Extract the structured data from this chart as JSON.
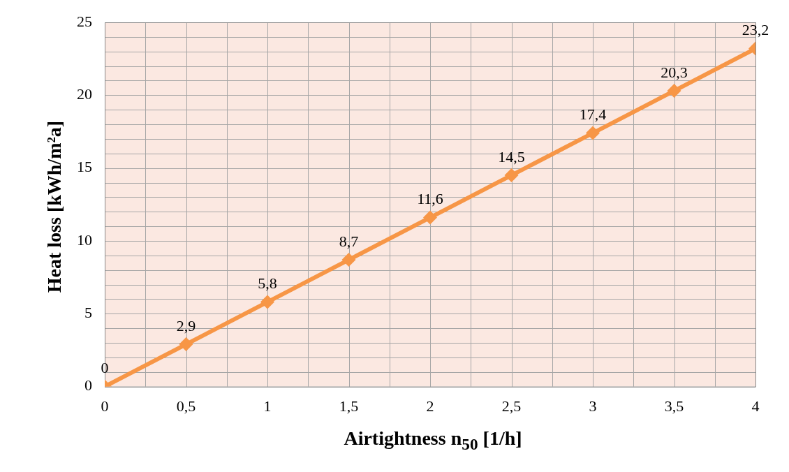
{
  "chart_data": {
    "type": "line",
    "xlabel": "Airtightness n$_{50}$ [1/h]",
    "ylabel": "Heat loss [kWh/m²a]",
    "x": [
      0,
      0.5,
      1,
      1.5,
      2,
      2.5,
      3,
      3.5,
      4
    ],
    "values": [
      0,
      2.9,
      5.8,
      8.7,
      11.6,
      14.5,
      17.4,
      20.3,
      23.2
    ],
    "value_labels": [
      "0",
      "2,9",
      "5,8",
      "8,7",
      "11,6",
      "14,5",
      "17,4",
      "20,3",
      "23,2"
    ],
    "color": "#f79646",
    "marker": "diamond",
    "line_style": "solid",
    "xlim": [
      0,
      4
    ],
    "xticks": [
      0,
      {
        "value": 0.5,
        "label": "0,5"
      },
      1,
      {
        "value": 1.5,
        "label": "1,5"
      },
      2,
      {
        "value": 2.5,
        "label": "2,5"
      },
      3,
      {
        "value": 3.5,
        "label": "3,5"
      },
      4
    ],
    "ylim": [
      0,
      25
    ],
    "yticks": [
      0,
      5,
      10,
      15,
      20,
      25
    ],
    "grid": true,
    "legend": false
  }
}
